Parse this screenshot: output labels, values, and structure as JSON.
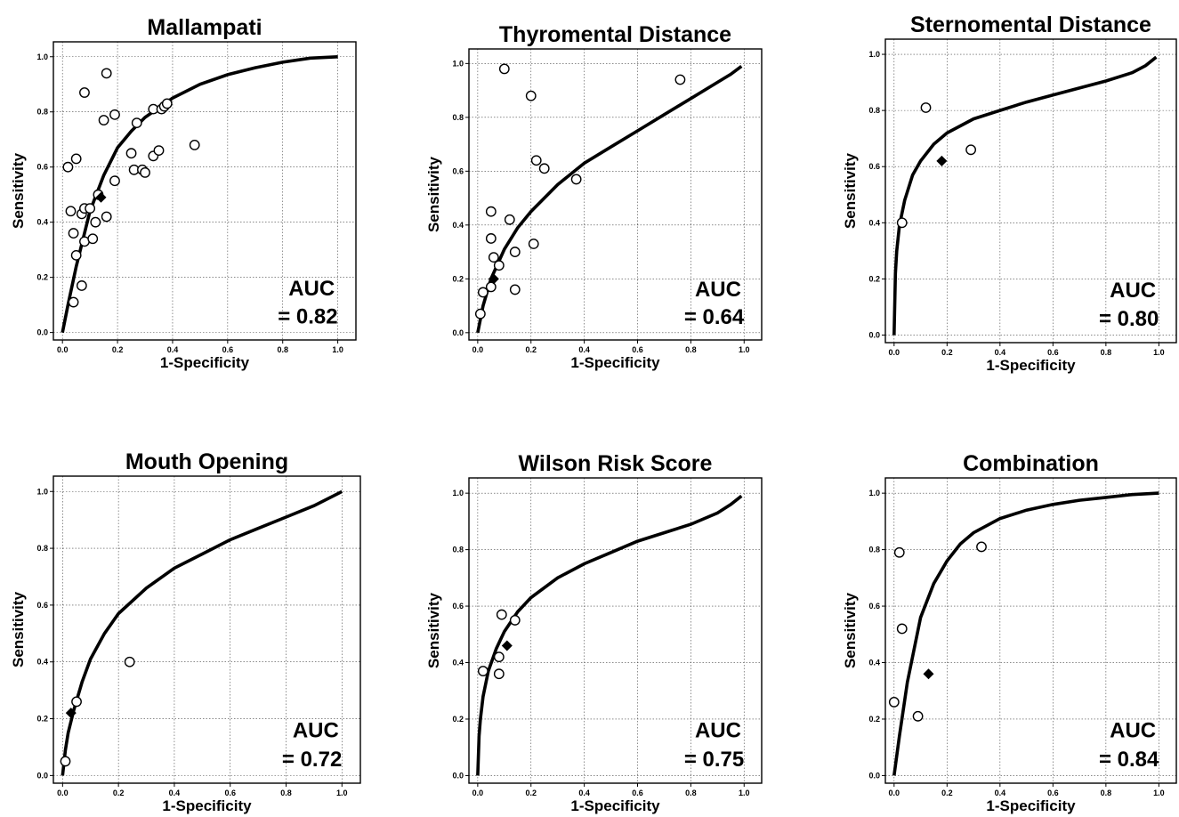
{
  "chart_data": [
    {
      "type": "scatter",
      "title": "Mallampati",
      "xlabel": "1-Specificity",
      "ylabel": "Sensitivity",
      "xlim": [
        0,
        1
      ],
      "ylim": [
        0,
        1
      ],
      "ticks": [
        "0.0",
        "0.2",
        "0.4",
        "0.6",
        "0.8",
        "1.0"
      ],
      "grid": true,
      "auc_label": "AUC",
      "auc_value": "= 0.82",
      "curve": {
        "x": [
          0,
          0.02,
          0.05,
          0.1,
          0.15,
          0.2,
          0.25,
          0.3,
          0.4,
          0.5,
          0.6,
          0.7,
          0.8,
          0.9,
          1.0
        ],
        "y": [
          0,
          0.1,
          0.24,
          0.44,
          0.57,
          0.67,
          0.73,
          0.78,
          0.85,
          0.9,
          0.935,
          0.96,
          0.98,
          0.995,
          1.0
        ]
      },
      "studies": [
        {
          "x": 0.02,
          "y": 0.6
        },
        {
          "x": 0.03,
          "y": 0.44
        },
        {
          "x": 0.04,
          "y": 0.36
        },
        {
          "x": 0.04,
          "y": 0.11
        },
        {
          "x": 0.05,
          "y": 0.63
        },
        {
          "x": 0.05,
          "y": 0.28
        },
        {
          "x": 0.07,
          "y": 0.43
        },
        {
          "x": 0.07,
          "y": 0.17
        },
        {
          "x": 0.08,
          "y": 0.87
        },
        {
          "x": 0.08,
          "y": 0.45
        },
        {
          "x": 0.08,
          "y": 0.33
        },
        {
          "x": 0.1,
          "y": 0.45
        },
        {
          "x": 0.11,
          "y": 0.34
        },
        {
          "x": 0.12,
          "y": 0.4
        },
        {
          "x": 0.13,
          "y": 0.5
        },
        {
          "x": 0.15,
          "y": 0.77
        },
        {
          "x": 0.16,
          "y": 0.94
        },
        {
          "x": 0.16,
          "y": 0.42
        },
        {
          "x": 0.19,
          "y": 0.79
        },
        {
          "x": 0.19,
          "y": 0.55
        },
        {
          "x": 0.25,
          "y": 0.65
        },
        {
          "x": 0.26,
          "y": 0.59
        },
        {
          "x": 0.27,
          "y": 0.76
        },
        {
          "x": 0.29,
          "y": 0.59
        },
        {
          "x": 0.3,
          "y": 0.58
        },
        {
          "x": 0.33,
          "y": 0.81
        },
        {
          "x": 0.33,
          "y": 0.64
        },
        {
          "x": 0.35,
          "y": 0.66
        },
        {
          "x": 0.36,
          "y": 0.81
        },
        {
          "x": 0.37,
          "y": 0.82
        },
        {
          "x": 0.38,
          "y": 0.83
        },
        {
          "x": 0.48,
          "y": 0.68
        }
      ],
      "summary_point": {
        "x": 0.14,
        "y": 0.49
      }
    },
    {
      "type": "scatter",
      "title": "Thyromental Distance",
      "xlabel": "1-Specificity",
      "ylabel": "Sensitivity",
      "xlim": [
        0,
        1
      ],
      "ylim": [
        0,
        1
      ],
      "ticks": [
        "0.0",
        "0.2",
        "0.4",
        "0.6",
        "0.8",
        "1.0"
      ],
      "grid": true,
      "auc_label": "AUC",
      "auc_value": "= 0.64",
      "curve": {
        "x": [
          0,
          0.02,
          0.05,
          0.1,
          0.15,
          0.2,
          0.3,
          0.4,
          0.5,
          0.6,
          0.7,
          0.8,
          0.9,
          0.95,
          0.99
        ],
        "y": [
          0,
          0.1,
          0.2,
          0.31,
          0.39,
          0.45,
          0.55,
          0.63,
          0.69,
          0.75,
          0.81,
          0.87,
          0.93,
          0.96,
          0.99
        ]
      },
      "studies": [
        {
          "x": 0.01,
          "y": 0.07
        },
        {
          "x": 0.02,
          "y": 0.15
        },
        {
          "x": 0.05,
          "y": 0.45
        },
        {
          "x": 0.05,
          "y": 0.35
        },
        {
          "x": 0.05,
          "y": 0.17
        },
        {
          "x": 0.06,
          "y": 0.28
        },
        {
          "x": 0.08,
          "y": 0.25
        },
        {
          "x": 0.1,
          "y": 0.98
        },
        {
          "x": 0.12,
          "y": 0.42
        },
        {
          "x": 0.14,
          "y": 0.3
        },
        {
          "x": 0.14,
          "y": 0.16
        },
        {
          "x": 0.2,
          "y": 0.88
        },
        {
          "x": 0.21,
          "y": 0.33
        },
        {
          "x": 0.22,
          "y": 0.64
        },
        {
          "x": 0.25,
          "y": 0.61
        },
        {
          "x": 0.37,
          "y": 0.57
        },
        {
          "x": 0.76,
          "y": 0.94
        }
      ],
      "summary_point": {
        "x": 0.06,
        "y": 0.2
      }
    },
    {
      "type": "scatter",
      "title": "Sternomental Distance",
      "xlabel": "1-Specificity",
      "ylabel": "Sensitivity",
      "xlim": [
        0,
        1
      ],
      "ylim": [
        0,
        1
      ],
      "ticks": [
        "0.0",
        "0.2",
        "0.4",
        "0.6",
        "0.8",
        "1.0"
      ],
      "grid": true,
      "auc_label": "AUC",
      "auc_value": "= 0.80",
      "curve": {
        "x": [
          0,
          0.005,
          0.01,
          0.02,
          0.04,
          0.07,
          0.1,
          0.15,
          0.2,
          0.3,
          0.4,
          0.5,
          0.6,
          0.7,
          0.8,
          0.9,
          0.95,
          0.99
        ],
        "y": [
          0,
          0.22,
          0.3,
          0.39,
          0.48,
          0.57,
          0.62,
          0.68,
          0.72,
          0.77,
          0.8,
          0.83,
          0.855,
          0.88,
          0.905,
          0.935,
          0.96,
          0.99
        ]
      },
      "studies": [
        {
          "x": 0.03,
          "y": 0.4
        },
        {
          "x": 0.12,
          "y": 0.81
        },
        {
          "x": 0.29,
          "y": 0.66
        }
      ],
      "summary_point": {
        "x": 0.18,
        "y": 0.62
      }
    },
    {
      "type": "scatter",
      "title": "Mouth Opening",
      "xlabel": "1-Specificity",
      "ylabel": "Sensitivity",
      "xlim": [
        0,
        1
      ],
      "ylim": [
        0,
        1
      ],
      "ticks": [
        "0.0",
        "0.2",
        "0.4",
        "0.6",
        "0.8",
        "1.0"
      ],
      "grid": true,
      "auc_label": "AUC",
      "auc_value": "= 0.72",
      "curve": {
        "x": [
          0,
          0.01,
          0.02,
          0.04,
          0.07,
          0.1,
          0.15,
          0.2,
          0.3,
          0.4,
          0.5,
          0.6,
          0.7,
          0.8,
          0.9,
          1.0
        ],
        "y": [
          0,
          0.09,
          0.15,
          0.23,
          0.33,
          0.41,
          0.5,
          0.57,
          0.66,
          0.73,
          0.78,
          0.83,
          0.87,
          0.91,
          0.95,
          1.0
        ]
      },
      "studies": [
        {
          "x": 0.01,
          "y": 0.05
        },
        {
          "x": 0.05,
          "y": 0.26
        },
        {
          "x": 0.24,
          "y": 0.4
        }
      ],
      "summary_point": {
        "x": 0.03,
        "y": 0.22
      }
    },
    {
      "type": "scatter",
      "title": "Wilson Risk Score",
      "xlabel": "1-Specificity",
      "ylabel": "Sensitivity",
      "xlim": [
        0,
        1
      ],
      "ylim": [
        0,
        1
      ],
      "ticks": [
        "0.0",
        "0.2",
        "0.4",
        "0.6",
        "0.8",
        "1.0"
      ],
      "grid": true,
      "auc_label": "AUC",
      "auc_value": "= 0.75",
      "curve": {
        "x": [
          0,
          0.005,
          0.01,
          0.02,
          0.04,
          0.07,
          0.1,
          0.15,
          0.2,
          0.3,
          0.4,
          0.5,
          0.6,
          0.7,
          0.8,
          0.9,
          0.95,
          0.99
        ],
        "y": [
          0,
          0.14,
          0.2,
          0.28,
          0.37,
          0.45,
          0.51,
          0.58,
          0.63,
          0.7,
          0.75,
          0.79,
          0.83,
          0.86,
          0.89,
          0.93,
          0.96,
          0.99
        ]
      },
      "studies": [
        {
          "x": 0.02,
          "y": 0.37
        },
        {
          "x": 0.08,
          "y": 0.42
        },
        {
          "x": 0.08,
          "y": 0.36
        },
        {
          "x": 0.09,
          "y": 0.57
        },
        {
          "x": 0.14,
          "y": 0.55
        }
      ],
      "summary_point": {
        "x": 0.11,
        "y": 0.46
      }
    },
    {
      "type": "scatter",
      "title": "Combination",
      "xlabel": "1-Specificity",
      "ylabel": "Sensitivity",
      "xlim": [
        0,
        1
      ],
      "ylim": [
        0,
        1
      ],
      "ticks": [
        "0.0",
        "0.2",
        "0.4",
        "0.6",
        "0.8",
        "1.0"
      ],
      "grid": true,
      "auc_label": "AUC",
      "auc_value": "= 0.84",
      "curve": {
        "x": [
          0,
          0.02,
          0.05,
          0.1,
          0.15,
          0.2,
          0.25,
          0.3,
          0.4,
          0.5,
          0.6,
          0.7,
          0.8,
          0.9,
          1.0
        ],
        "y": [
          0,
          0.14,
          0.33,
          0.56,
          0.68,
          0.76,
          0.82,
          0.86,
          0.91,
          0.94,
          0.96,
          0.975,
          0.985,
          0.995,
          1.0
        ]
      },
      "studies": [
        {
          "x": 0.0,
          "y": 0.26
        },
        {
          "x": 0.02,
          "y": 0.79
        },
        {
          "x": 0.03,
          "y": 0.52
        },
        {
          "x": 0.09,
          "y": 0.21
        },
        {
          "x": 0.33,
          "y": 0.81
        }
      ],
      "summary_point": {
        "x": 0.13,
        "y": 0.36
      }
    }
  ]
}
